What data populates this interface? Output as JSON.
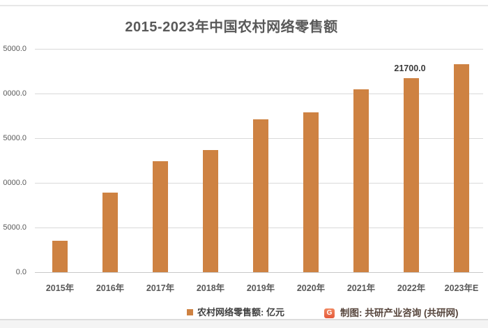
{
  "chart_data": {
    "type": "bar",
    "title": "2015-2023年中国农村网络零售额",
    "categories": [
      "2015年",
      "2016年",
      "2017年",
      "2018年",
      "2019年",
      "2020年",
      "2021年",
      "2022年",
      "2023年E"
    ],
    "values": [
      3530.0,
      8945.4,
      12448.8,
      13679.4,
      17083.0,
      17925.5,
      20500.0,
      21700.0,
      23300.0
    ],
    "point_labels": [
      null,
      null,
      null,
      null,
      null,
      null,
      null,
      "21700.0",
      null
    ],
    "unit": "亿元",
    "legend": [
      "农村网络零售额: 亿元"
    ],
    "legend_position": "bottom",
    "grid": "horizontal",
    "ylim": [
      0,
      25000
    ],
    "yticks": [
      0,
      5000,
      10000,
      15000,
      20000,
      25000
    ],
    "ytick_labels_visible": [
      "0.0",
      "5000.0",
      "0000.0",
      "5000.0",
      "0000.0",
      "5000.0"
    ],
    "xlabel": "",
    "ylabel": ""
  },
  "attribution": {
    "label": "制图: 共研产业咨询 (共研网)",
    "logo_letter": "G"
  },
  "colors": {
    "bar": "#ce8242",
    "grid": "#d9d9d9",
    "axis_text": "#595959",
    "title_text": "#595959",
    "data_label_text": "#3a3a3a",
    "legend_text": "#3f3f3f",
    "attribution_text": "#56453c",
    "logo_bg_top": "#f0875f",
    "logo_bg_bottom": "#e55a3c"
  }
}
